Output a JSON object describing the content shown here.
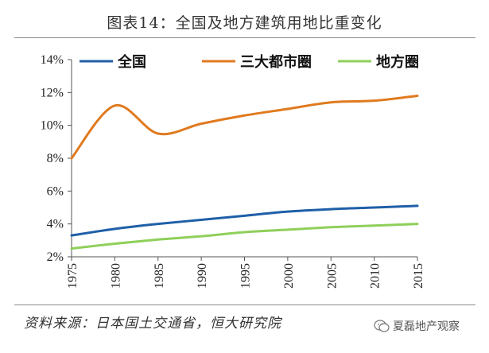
{
  "header": {
    "title": "图表14：全国及地方建筑用地比重变化"
  },
  "footer": {
    "source": "资料来源：日本国土交通省，恒大研究院"
  },
  "watermark": {
    "icon": "wechat-icon",
    "text": "夏磊地产观察"
  },
  "colors": {
    "national": "#1f5fa8",
    "metro": "#e07a1f",
    "local": "#8fcf5a",
    "axis": "#555555"
  },
  "chart_data": {
    "type": "line",
    "title": "图表14：全国及地方建筑用地比重变化",
    "xlabel": "",
    "ylabel": "",
    "x": [
      1975,
      1980,
      1985,
      1990,
      1995,
      2000,
      2005,
      2010,
      2015
    ],
    "xtick_labels": [
      "1975",
      "1980",
      "1985",
      "1990",
      "1995",
      "2000",
      "2005",
      "2010",
      "2015"
    ],
    "ylim": [
      2,
      14
    ],
    "yticks": [
      2,
      4,
      6,
      8,
      10,
      12,
      14
    ],
    "ytick_labels": [
      "2%",
      "4%",
      "6%",
      "8%",
      "10%",
      "12%",
      "14%"
    ],
    "legend_position": "top",
    "series": [
      {
        "name": "全国",
        "values": [
          3.3,
          3.7,
          4.0,
          4.25,
          4.5,
          4.75,
          4.9,
          5.0,
          5.1
        ]
      },
      {
        "name": "三大都市圈",
        "values": [
          8.0,
          11.2,
          9.5,
          10.1,
          10.6,
          11.0,
          11.4,
          11.5,
          11.8
        ]
      },
      {
        "name": "地方圈",
        "values": [
          2.5,
          2.8,
          3.05,
          3.25,
          3.5,
          3.65,
          3.8,
          3.9,
          4.0
        ]
      }
    ]
  }
}
